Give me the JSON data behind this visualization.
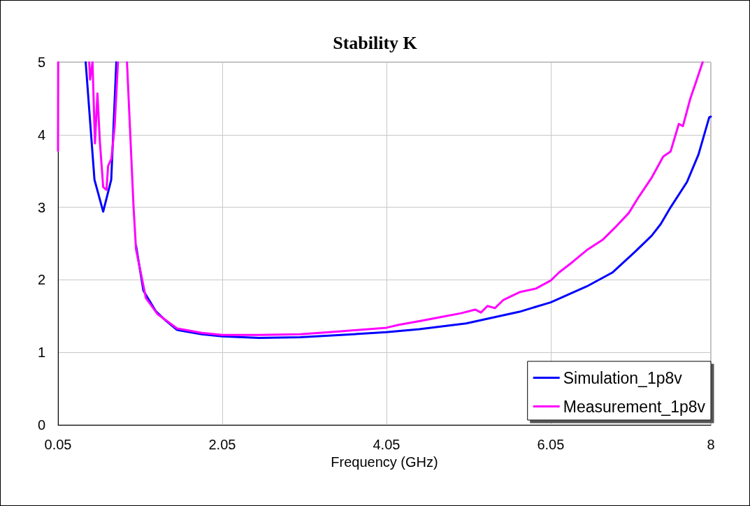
{
  "chart_data": {
    "type": "line",
    "title": "Stability K",
    "xlabel": "Frequency (GHz)",
    "xlim": [
      0.05,
      8
    ],
    "xticks": [
      0.05,
      2.05,
      4.05,
      6.05,
      8
    ],
    "ylim": [
      0,
      5
    ],
    "yticks": [
      0,
      1,
      2,
      3,
      4,
      5
    ],
    "grid": true,
    "legend": "bottom right",
    "marker": "none",
    "line_style": "solid",
    "series": [
      {
        "name": "Simulation_1p8v",
        "color": "#0000ff",
        "x": [
          0.387,
          0.494,
          0.6,
          0.698,
          0.76,
          0.87,
          1.0,
          1.09,
          1.24,
          1.35,
          1.5,
          1.8,
          2.05,
          2.5,
          3.0,
          3.5,
          4.05,
          4.45,
          5.02,
          5.67,
          6.05,
          6.49,
          6.8,
          7.08,
          7.28,
          7.39,
          7.51,
          7.71,
          7.85,
          7.98,
          8.0
        ],
        "values": [
          5,
          3.38,
          2.94,
          3.38,
          5,
          null,
          2.47,
          1.85,
          1.57,
          1.45,
          1.31,
          1.25,
          1.22,
          1.2,
          1.21,
          1.24,
          1.28,
          1.32,
          1.4,
          1.56,
          1.69,
          1.91,
          2.1,
          2.39,
          2.61,
          2.77,
          3.0,
          3.35,
          3.73,
          4.24,
          4.25
        ]
      },
      {
        "name": "Measurement_1p8v",
        "color": "#ff00ff",
        "x": [
          0.05,
          0.052,
          0.2,
          0.43,
          0.44,
          0.47,
          0.5,
          0.53,
          0.56,
          0.6,
          0.64,
          0.66,
          0.7,
          0.74,
          0.78,
          0.8,
          0.89,
          0.97,
          1.0,
          1.12,
          1.26,
          1.5,
          1.8,
          2.05,
          2.5,
          3.0,
          3.5,
          4.05,
          4.2,
          4.45,
          4.73,
          4.96,
          5.13,
          5.2,
          5.28,
          5.37,
          5.47,
          5.67,
          5.87,
          6.05,
          6.15,
          6.32,
          6.49,
          6.68,
          6.85,
          7.0,
          7.12,
          7.28,
          7.42,
          7.51,
          7.61,
          7.66,
          7.75,
          7.82,
          7.9
        ],
        "values": [
          3.78,
          5,
          null,
          5,
          4.76,
          5,
          3.88,
          4.57,
          3.9,
          3.28,
          3.24,
          3.57,
          3.67,
          4.12,
          5,
          null,
          5,
          3.0,
          2.42,
          1.75,
          1.53,
          1.33,
          1.27,
          1.24,
          1.24,
          1.25,
          1.29,
          1.34,
          1.38,
          1.43,
          1.49,
          1.54,
          1.59,
          1.55,
          1.64,
          1.61,
          1.72,
          1.83,
          1.88,
          1.99,
          2.1,
          2.25,
          2.41,
          2.55,
          2.74,
          2.92,
          3.14,
          3.41,
          3.7,
          3.77,
          4.15,
          4.12,
          4.5,
          4.73,
          5.0
        ]
      }
    ]
  }
}
